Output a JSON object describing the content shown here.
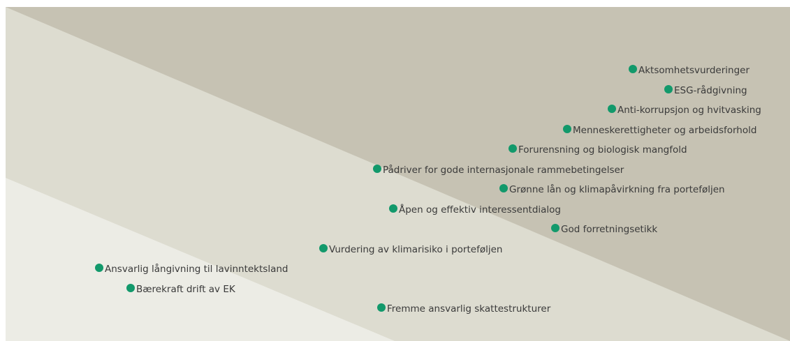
{
  "nodes": [
    {
      "label": "Aktsomhetsvurderinger"
    },
    {
      "label": "ESG-rådgivning"
    },
    {
      "label": "Anti-korrupsjon og hvitvasking"
    },
    {
      "label": "Menneskerettigheter og arbeidsforhold"
    },
    {
      "label": "Forurensning og biologisk mangfold"
    },
    {
      "label": "Pådriver for gode internasjonale rammebetingelser"
    },
    {
      "label": "Grønne lån og klimapåvirkning fra porteføljen"
    },
    {
      "label": "Åpen og effektiv interessentdialog"
    },
    {
      "label": "God forretningsetikk"
    },
    {
      "label": "Vurdering av klimarisiko i porteføljen"
    },
    {
      "label": "Ansvarlig långivning til lavinntektsland"
    },
    {
      "label": "Bærekraft drift av EK"
    },
    {
      "label": "Fremme ansvarlig skattestrukturer"
    }
  ]
}
